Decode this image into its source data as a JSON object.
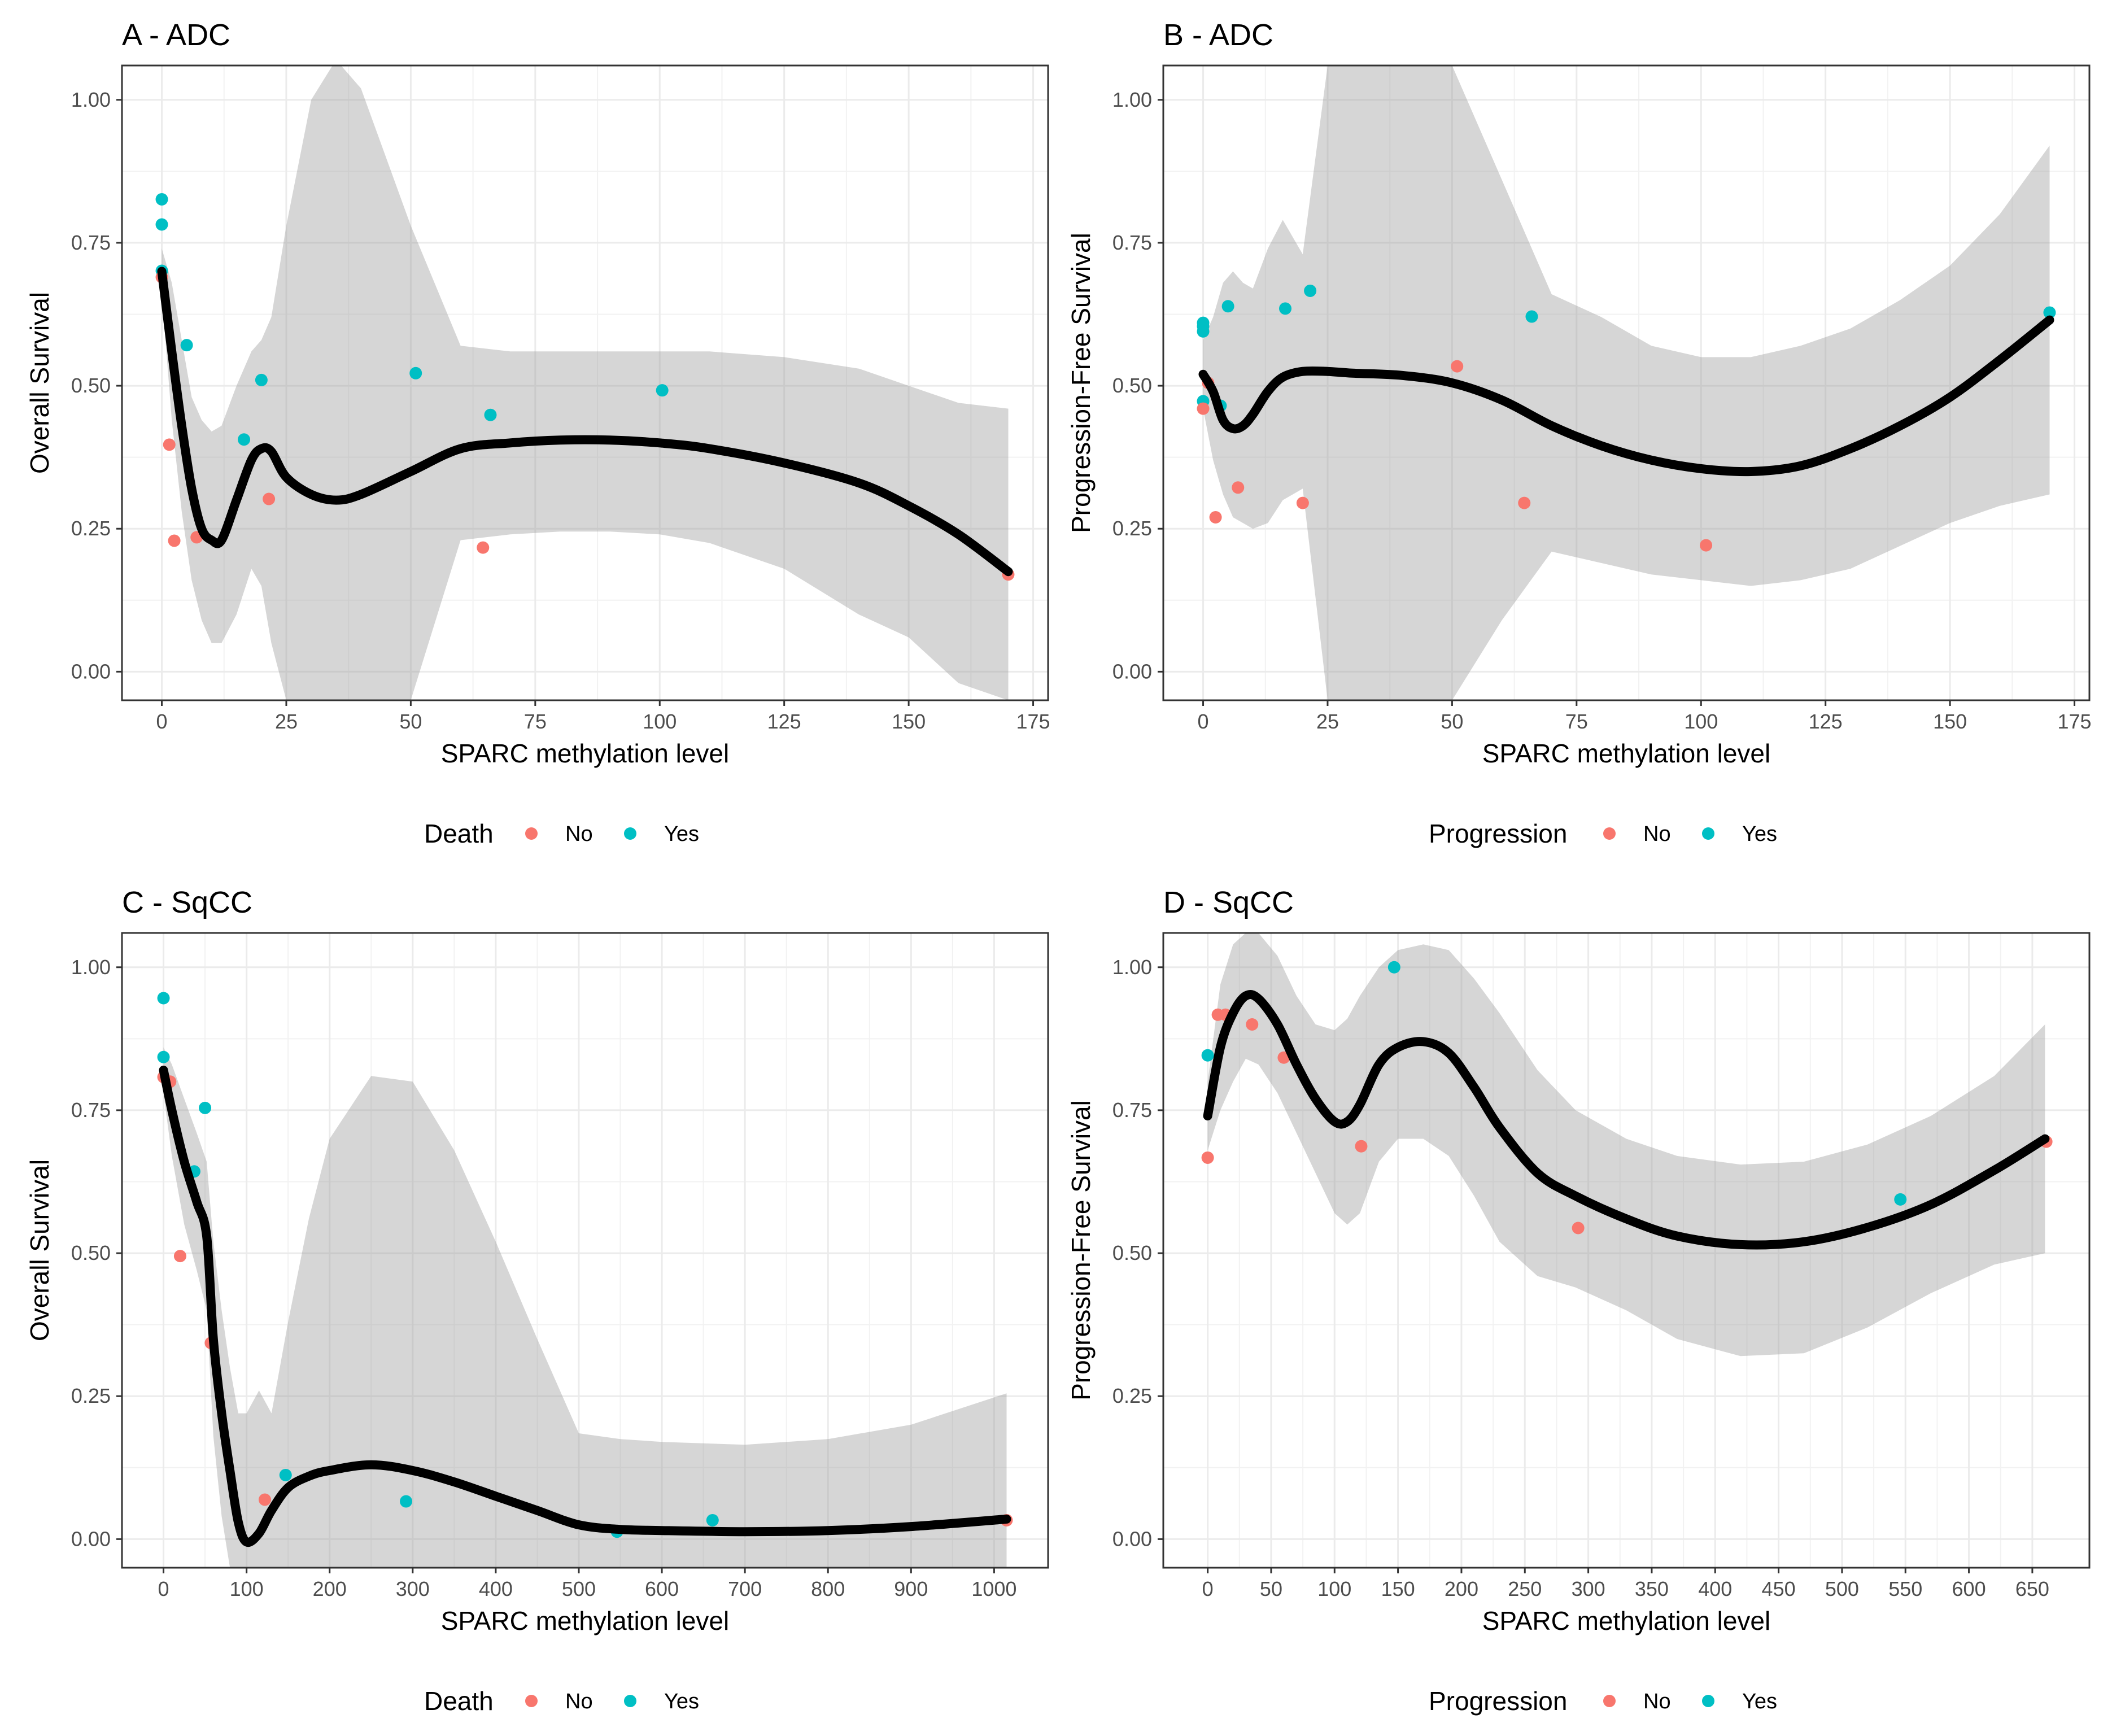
{
  "chart_data": [
    {
      "type": "scatter",
      "panel": "A",
      "title": "A - ADC",
      "xlabel": "SPARC methylation level",
      "ylabel": "Overall Survival",
      "xlim": [
        -8,
        178
      ],
      "ylim": [
        -0.05,
        1.06
      ],
      "xticks": [
        0,
        25,
        50,
        75,
        100,
        125,
        150,
        175
      ],
      "yticks": [
        0.0,
        0.25,
        0.5,
        0.75,
        1.0
      ],
      "ytick_labels": [
        "0.00",
        "0.25",
        "0.50",
        "0.75",
        "1.00"
      ],
      "grid": true,
      "legend": {
        "title": "Death",
        "position": "bottom",
        "entries": [
          {
            "label": "No",
            "color": "#F8766D"
          },
          {
            "label": "Yes",
            "color": "#00BFC4"
          }
        ]
      },
      "points": [
        {
          "x": 0,
          "y": 0.826,
          "group": "Yes"
        },
        {
          "x": 0,
          "y": 0.782,
          "group": "Yes"
        },
        {
          "x": 0,
          "y": 0.701,
          "group": "Yes"
        },
        {
          "x": 0,
          "y": 0.69,
          "group": "No"
        },
        {
          "x": 1.5,
          "y": 0.397,
          "group": "No"
        },
        {
          "x": 2.5,
          "y": 0.229,
          "group": "No"
        },
        {
          "x": 5,
          "y": 0.571,
          "group": "Yes"
        },
        {
          "x": 7,
          "y": 0.235,
          "group": "No"
        },
        {
          "x": 16.5,
          "y": 0.406,
          "group": "Yes"
        },
        {
          "x": 20,
          "y": 0.51,
          "group": "Yes"
        },
        {
          "x": 21.5,
          "y": 0.302,
          "group": "No"
        },
        {
          "x": 51,
          "y": 0.522,
          "group": "Yes"
        },
        {
          "x": 64.5,
          "y": 0.217,
          "group": "No"
        },
        {
          "x": 66,
          "y": 0.449,
          "group": "Yes"
        },
        {
          "x": 100.5,
          "y": 0.492,
          "group": "Yes"
        },
        {
          "x": 170,
          "y": 0.17,
          "group": "No"
        }
      ],
      "smooth": {
        "x": [
          0,
          2,
          4,
          6,
          8,
          10,
          12,
          15,
          18,
          20,
          22,
          25,
          30,
          35,
          40,
          50,
          60,
          70,
          80,
          90,
          100,
          110,
          125,
          140,
          150,
          160,
          170
        ],
        "y": [
          0.7,
          0.56,
          0.43,
          0.32,
          0.25,
          0.23,
          0.23,
          0.3,
          0.37,
          0.39,
          0.385,
          0.34,
          0.31,
          0.3,
          0.31,
          0.35,
          0.39,
          0.4,
          0.405,
          0.405,
          0.4,
          0.39,
          0.365,
          0.33,
          0.29,
          0.24,
          0.175
        ],
        "ci_upper": [
          0.74,
          0.68,
          0.58,
          0.48,
          0.44,
          0.42,
          0.43,
          0.5,
          0.56,
          0.58,
          0.62,
          0.78,
          1.0,
          1.07,
          1.02,
          0.78,
          0.57,
          0.56,
          0.56,
          0.56,
          0.56,
          0.56,
          0.55,
          0.53,
          0.5,
          0.47,
          0.46
        ],
        "ci_lower": [
          0.66,
          0.44,
          0.28,
          0.16,
          0.09,
          0.05,
          0.05,
          0.1,
          0.18,
          0.15,
          0.05,
          -0.05,
          -0.05,
          -0.05,
          -0.05,
          -0.05,
          0.23,
          0.24,
          0.245,
          0.245,
          0.24,
          0.225,
          0.18,
          0.1,
          0.06,
          -0.02,
          -0.05
        ]
      }
    },
    {
      "type": "scatter",
      "panel": "B",
      "title": "B - ADC",
      "xlabel": "SPARC methylation level",
      "ylabel": "Progression-Free Survival",
      "xlim": [
        -8,
        178
      ],
      "ylim": [
        -0.05,
        1.06
      ],
      "xticks": [
        0,
        25,
        50,
        75,
        100,
        125,
        150,
        175
      ],
      "yticks": [
        0.0,
        0.25,
        0.5,
        0.75,
        1.0
      ],
      "ytick_labels": [
        "0.00",
        "0.25",
        "0.50",
        "0.75",
        "1.00"
      ],
      "grid": true,
      "legend": {
        "title": "Progression",
        "position": "bottom",
        "entries": [
          {
            "label": "No",
            "color": "#F8766D"
          },
          {
            "label": "Yes",
            "color": "#00BFC4"
          }
        ]
      },
      "points": [
        {
          "x": 0,
          "y": 0.61,
          "group": "Yes"
        },
        {
          "x": 0,
          "y": 0.604,
          "group": "Yes"
        },
        {
          "x": 0,
          "y": 0.595,
          "group": "Yes"
        },
        {
          "x": 0,
          "y": 0.473,
          "group": "Yes"
        },
        {
          "x": 0,
          "y": 0.46,
          "group": "No"
        },
        {
          "x": 1,
          "y": 0.505,
          "group": "No"
        },
        {
          "x": 2.5,
          "y": 0.27,
          "group": "No"
        },
        {
          "x": 3.5,
          "y": 0.465,
          "group": "Yes"
        },
        {
          "x": 5,
          "y": 0.639,
          "group": "Yes"
        },
        {
          "x": 7,
          "y": 0.322,
          "group": "No"
        },
        {
          "x": 16.5,
          "y": 0.635,
          "group": "Yes"
        },
        {
          "x": 20,
          "y": 0.295,
          "group": "No"
        },
        {
          "x": 21.5,
          "y": 0.666,
          "group": "Yes"
        },
        {
          "x": 51,
          "y": 0.534,
          "group": "No"
        },
        {
          "x": 64.5,
          "y": 0.295,
          "group": "No"
        },
        {
          "x": 66,
          "y": 0.621,
          "group": "Yes"
        },
        {
          "x": 101,
          "y": 0.221,
          "group": "No"
        },
        {
          "x": 170,
          "y": 0.628,
          "group": "Yes"
        }
      ],
      "smooth": {
        "x": [
          0,
          2,
          4,
          6,
          8,
          10,
          13,
          16,
          20,
          25,
          30,
          40,
          50,
          60,
          70,
          80,
          90,
          100,
          110,
          120,
          130,
          140,
          150,
          160,
          170
        ],
        "y": [
          0.52,
          0.49,
          0.44,
          0.425,
          0.43,
          0.45,
          0.49,
          0.515,
          0.525,
          0.525,
          0.522,
          0.518,
          0.505,
          0.475,
          0.43,
          0.395,
          0.37,
          0.355,
          0.35,
          0.36,
          0.39,
          0.43,
          0.48,
          0.545,
          0.615
        ],
        "ci_upper": [
          0.58,
          0.62,
          0.68,
          0.7,
          0.68,
          0.67,
          0.74,
          0.79,
          0.73,
          1.06,
          1.06,
          1.06,
          1.06,
          0.86,
          0.66,
          0.62,
          0.57,
          0.55,
          0.55,
          0.57,
          0.6,
          0.65,
          0.71,
          0.8,
          0.92
        ],
        "ci_lower": [
          0.46,
          0.37,
          0.31,
          0.27,
          0.26,
          0.25,
          0.26,
          0.3,
          0.32,
          -0.05,
          -0.05,
          -0.05,
          -0.05,
          0.09,
          0.21,
          0.19,
          0.17,
          0.16,
          0.15,
          0.16,
          0.18,
          0.22,
          0.26,
          0.29,
          0.31
        ]
      }
    },
    {
      "type": "scatter",
      "panel": "C",
      "title": "C - SqCC",
      "xlabel": "SPARC methylation level",
      "ylabel": "Overall Survival",
      "xlim": [
        -50,
        1065
      ],
      "ylim": [
        -0.05,
        1.06
      ],
      "xticks": [
        0,
        100,
        200,
        300,
        400,
        500,
        600,
        700,
        800,
        900,
        1000
      ],
      "yticks": [
        0.0,
        0.25,
        0.5,
        0.75,
        1.0
      ],
      "ytick_labels": [
        "0.00",
        "0.25",
        "0.50",
        "0.75",
        "1.00"
      ],
      "grid": true,
      "legend": {
        "title": "Death",
        "position": "bottom",
        "entries": [
          {
            "label": "No",
            "color": "#F8766D"
          },
          {
            "label": "Yes",
            "color": "#00BFC4"
          }
        ]
      },
      "points": [
        {
          "x": 0,
          "y": 0.946,
          "group": "Yes"
        },
        {
          "x": 0,
          "y": 0.843,
          "group": "Yes"
        },
        {
          "x": 0,
          "y": 0.808,
          "group": "No"
        },
        {
          "x": 8,
          "y": 0.8,
          "group": "No"
        },
        {
          "x": 20,
          "y": 0.495,
          "group": "No"
        },
        {
          "x": 37,
          "y": 0.643,
          "group": "Yes"
        },
        {
          "x": 50,
          "y": 0.754,
          "group": "Yes"
        },
        {
          "x": 57,
          "y": 0.343,
          "group": "No"
        },
        {
          "x": 122,
          "y": 0.069,
          "group": "No"
        },
        {
          "x": 147,
          "y": 0.112,
          "group": "Yes"
        },
        {
          "x": 292,
          "y": 0.066,
          "group": "Yes"
        },
        {
          "x": 546,
          "y": 0.013,
          "group": "Yes"
        },
        {
          "x": 661,
          "y": 0.033,
          "group": "Yes"
        },
        {
          "x": 1015,
          "y": 0.033,
          "group": "No"
        }
      ],
      "smooth": {
        "x": [
          0,
          10,
          25,
          40,
          52,
          60,
          70,
          80,
          90,
          100,
          115,
          130,
          150,
          175,
          200,
          250,
          300,
          350,
          400,
          450,
          500,
          550,
          600,
          700,
          800,
          900,
          1015
        ],
        "y": [
          0.82,
          0.75,
          0.66,
          0.59,
          0.53,
          0.35,
          0.22,
          0.12,
          0.03,
          -0.005,
          0.01,
          0.05,
          0.09,
          0.11,
          0.12,
          0.13,
          0.12,
          0.1,
          0.075,
          0.05,
          0.025,
          0.017,
          0.015,
          0.013,
          0.015,
          0.022,
          0.035
        ],
        "ci_upper": [
          0.86,
          0.83,
          0.77,
          0.71,
          0.66,
          0.52,
          0.4,
          0.3,
          0.22,
          0.22,
          0.26,
          0.22,
          0.38,
          0.56,
          0.7,
          0.81,
          0.8,
          0.68,
          0.52,
          0.35,
          0.185,
          0.175,
          0.17,
          0.165,
          0.175,
          0.2,
          0.255
        ],
        "ci_lower": [
          0.78,
          0.67,
          0.55,
          0.47,
          0.4,
          0.18,
          0.04,
          -0.05,
          -0.05,
          -0.05,
          -0.05,
          -0.05,
          -0.05,
          -0.05,
          -0.05,
          -0.05,
          -0.05,
          -0.05,
          -0.05,
          -0.05,
          -0.05,
          -0.05,
          -0.05,
          -0.05,
          -0.05,
          -0.05,
          -0.05
        ]
      }
    },
    {
      "type": "scatter",
      "panel": "D",
      "title": "D - SqCC",
      "xlabel": "SPARC methylation level",
      "ylabel": "Progression-Free Survival",
      "xlim": [
        -35,
        695
      ],
      "ylim": [
        -0.05,
        1.06
      ],
      "xticks": [
        0,
        50,
        100,
        150,
        200,
        250,
        300,
        350,
        400,
        450,
        500,
        550,
        600,
        650
      ],
      "yticks": [
        0.0,
        0.25,
        0.5,
        0.75,
        1.0
      ],
      "ytick_labels": [
        "0.00",
        "0.25",
        "0.50",
        "0.75",
        "1.00"
      ],
      "grid": true,
      "legend": {
        "title": "Progression",
        "position": "bottom",
        "entries": [
          {
            "label": "No",
            "color": "#F8766D"
          },
          {
            "label": "Yes",
            "color": "#00BFC4"
          }
        ]
      },
      "points": [
        {
          "x": 0,
          "y": 0.846,
          "group": "Yes"
        },
        {
          "x": 0,
          "y": 0.667,
          "group": "No"
        },
        {
          "x": 8,
          "y": 0.917,
          "group": "No"
        },
        {
          "x": 14,
          "y": 0.917,
          "group": "No"
        },
        {
          "x": 35,
          "y": 0.9,
          "group": "No"
        },
        {
          "x": 60,
          "y": 0.842,
          "group": "No"
        },
        {
          "x": 121,
          "y": 0.687,
          "group": "No"
        },
        {
          "x": 147,
          "y": 1.0,
          "group": "Yes"
        },
        {
          "x": 292,
          "y": 0.544,
          "group": "No"
        },
        {
          "x": 546,
          "y": 0.594,
          "group": "Yes"
        },
        {
          "x": 661,
          "y": 0.695,
          "group": "No"
        }
      ],
      "smooth": {
        "x": [
          0,
          10,
          20,
          30,
          40,
          55,
          70,
          85,
          100,
          110,
          120,
          135,
          150,
          170,
          190,
          210,
          230,
          260,
          290,
          330,
          370,
          420,
          470,
          520,
          570,
          620,
          660
        ],
        "y": [
          0.74,
          0.86,
          0.92,
          0.95,
          0.945,
          0.9,
          0.83,
          0.77,
          0.73,
          0.73,
          0.76,
          0.83,
          0.86,
          0.87,
          0.85,
          0.79,
          0.72,
          0.64,
          0.6,
          0.56,
          0.53,
          0.515,
          0.52,
          0.545,
          0.585,
          0.645,
          0.7
        ],
        "ci_upper": [
          0.8,
          0.97,
          1.04,
          1.06,
          1.06,
          1.02,
          0.95,
          0.9,
          0.89,
          0.91,
          0.95,
          1.0,
          1.03,
          1.04,
          1.03,
          0.98,
          0.92,
          0.82,
          0.75,
          0.7,
          0.67,
          0.655,
          0.66,
          0.69,
          0.74,
          0.81,
          0.9
        ],
        "ci_lower": [
          0.68,
          0.75,
          0.8,
          0.84,
          0.83,
          0.78,
          0.71,
          0.64,
          0.57,
          0.55,
          0.57,
          0.66,
          0.7,
          0.7,
          0.67,
          0.6,
          0.52,
          0.46,
          0.44,
          0.4,
          0.35,
          0.32,
          0.325,
          0.37,
          0.43,
          0.48,
          0.5
        ]
      }
    }
  ]
}
